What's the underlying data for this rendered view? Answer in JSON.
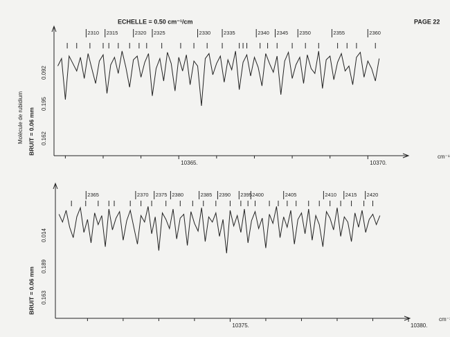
{
  "header": {
    "scale": "ECHELLE = 0.50 cm⁻¹/cm",
    "page": "PAGE 22"
  },
  "chart_data": [
    {
      "type": "line",
      "color": "#222222",
      "ylabel": "Molécule de rubidium",
      "noise_label": "BRUIT = 0.06 mm",
      "annotations": [
        "0.162",
        "0.195",
        "0.092"
      ],
      "xlabel": "cm⁻¹",
      "xlim": [
        10361.7,
        10370.8
      ],
      "ylim": [
        0,
        100
      ],
      "xticks": [
        {
          "value": 10365,
          "label": "10365."
        },
        {
          "value": 10370,
          "label": "10370."
        }
      ],
      "xminorticks": [
        10362,
        10363,
        10364,
        10366,
        10367,
        10368,
        10369
      ],
      "assignments": {
        "numbers": [
          2310,
          2315,
          2320,
          2325,
          2330,
          2335,
          2340,
          2345,
          2350,
          2355,
          2360
        ],
        "x": [
          10362.55,
          10363.05,
          10363.8,
          10364.3,
          10365.5,
          10366.15,
          10367.05,
          10367.55,
          10368.15,
          10369.05,
          10370.0
        ]
      },
      "assignment_ticks": [
        10362.05,
        10362.3,
        10362.65,
        10363.0,
        10363.15,
        10363.4,
        10363.7,
        10363.95,
        10364.15,
        10364.55,
        10365.05,
        10365.4,
        10365.75,
        10366.15,
        10366.6,
        10366.7,
        10366.8,
        10367.15,
        10367.35,
        10367.6,
        10368.0,
        10368.35,
        10368.7,
        10369.2,
        10369.45,
        10369.7,
        10370.2
      ],
      "x": [
        10361.8,
        10361.9,
        10362.0,
        10362.1,
        10362.2,
        10362.3,
        10362.4,
        10362.5,
        10362.6,
        10362.7,
        10362.8,
        10362.9,
        10363.0,
        10363.1,
        10363.2,
        10363.3,
        10363.4,
        10363.5,
        10363.6,
        10363.7,
        10363.8,
        10363.9,
        10364.0,
        10364.1,
        10364.2,
        10364.3,
        10364.4,
        10364.5,
        10364.6,
        10364.7,
        10364.8,
        10364.9,
        10365.0,
        10365.1,
        10365.2,
        10365.3,
        10365.4,
        10365.5,
        10365.6,
        10365.7,
        10365.8,
        10365.9,
        10366.0,
        10366.1,
        10366.2,
        10366.3,
        10366.4,
        10366.5,
        10366.6,
        10366.7,
        10366.8,
        10366.9,
        10367.0,
        10367.1,
        10367.2,
        10367.3,
        10367.4,
        10367.5,
        10367.6,
        10367.7,
        10367.8,
        10367.9,
        10368.0,
        10368.1,
        10368.2,
        10368.3,
        10368.4,
        10368.5,
        10368.6,
        10368.7,
        10368.8,
        10368.9,
        10369.0,
        10369.1,
        10369.2,
        10369.3,
        10369.4,
        10369.5,
        10369.6,
        10369.7,
        10369.8,
        10369.9,
        10370.0,
        10370.1,
        10370.2,
        10370.3
      ],
      "values": [
        72,
        78,
        45,
        80,
        74,
        68,
        79,
        62,
        82,
        70,
        58,
        76,
        81,
        50,
        73,
        79,
        66,
        84,
        71,
        55,
        77,
        80,
        63,
        75,
        82,
        48,
        70,
        78,
        60,
        83,
        74,
        52,
        79,
        68,
        81,
        57,
        76,
        72,
        40,
        78,
        82,
        65,
        74,
        80,
        59,
        77,
        69,
        84,
        53,
        75,
        81,
        64,
        79,
        71,
        56,
        82,
        74,
        67,
        80,
        49,
        76,
        83,
        62,
        73,
        79,
        58,
        81,
        70,
        66,
        84,
        54,
        77,
        80,
        61,
        75,
        82,
        68,
        72,
        57,
        79,
        83,
        63,
        76,
        70,
        60,
        78
      ]
    },
    {
      "type": "line",
      "color": "#222222",
      "noise_label": "BRUIT = 0.06 mm",
      "annotations": [
        "0.163",
        "0.189",
        "0.014"
      ],
      "xlabel": "cm⁻¹",
      "xlim": [
        10370.1,
        10380.0
      ],
      "ylim": [
        0,
        100
      ],
      "xticks": [
        {
          "value": 10375,
          "label": "10375."
        },
        {
          "value": 10380,
          "label": "10380."
        }
      ],
      "xminorticks": [
        10371,
        10372,
        10373,
        10374,
        10376,
        10377,
        10378,
        10379
      ],
      "assignments": {
        "numbers": [
          2365,
          2370,
          2375,
          2380,
          2385,
          2390,
          2395,
          2400,
          2405,
          2410,
          2415,
          2420
        ],
        "x": [
          10370.96,
          10372.35,
          10372.87,
          10373.33,
          10374.13,
          10374.65,
          10375.25,
          10375.58,
          10376.5,
          10377.62,
          10378.19,
          10378.79
        ]
      },
      "assignment_ticks": [
        10370.55,
        10370.95,
        10371.3,
        10371.6,
        10371.75,
        10372.2,
        10372.5,
        10372.8,
        10373.2,
        10373.6,
        10373.95,
        10374.25,
        10374.6,
        10375.0,
        10375.3,
        10375.5,
        10375.7,
        10376.1,
        10376.35,
        10376.6,
        10376.85,
        10377.2,
        10377.5,
        10377.8,
        10378.1,
        10378.4,
        10378.75,
        10379.0
      ],
      "x": [
        10370.2,
        10370.3,
        10370.4,
        10370.5,
        10370.6,
        10370.7,
        10370.8,
        10370.9,
        10371.0,
        10371.1,
        10371.2,
        10371.3,
        10371.4,
        10371.5,
        10371.6,
        10371.7,
        10371.8,
        10371.9,
        10372.0,
        10372.1,
        10372.2,
        10372.3,
        10372.4,
        10372.5,
        10372.6,
        10372.7,
        10372.8,
        10372.9,
        10373.0,
        10373.1,
        10373.2,
        10373.3,
        10373.4,
        10373.5,
        10373.6,
        10373.7,
        10373.8,
        10373.9,
        10374.0,
        10374.1,
        10374.2,
        10374.3,
        10374.4,
        10374.5,
        10374.6,
        10374.7,
        10374.8,
        10374.9,
        10375.0,
        10375.1,
        10375.2,
        10375.3,
        10375.4,
        10375.5,
        10375.6,
        10375.7,
        10375.8,
        10375.9,
        10376.0,
        10376.1,
        10376.2,
        10376.3,
        10376.4,
        10376.5,
        10376.6,
        10376.7,
        10376.8,
        10376.9,
        10377.0,
        10377.1,
        10377.2,
        10377.3,
        10377.4,
        10377.5,
        10377.6,
        10377.7,
        10377.8,
        10377.9,
        10378.0,
        10378.1,
        10378.2,
        10378.3,
        10378.4,
        10378.5,
        10378.6,
        10378.7,
        10378.8,
        10378.9,
        10379.0,
        10379.1,
        10379.2
      ],
      "values": [
        80,
        74,
        83,
        70,
        62,
        78,
        85,
        66,
        76,
        58,
        81,
        72,
        79,
        55,
        84,
        68,
        77,
        82,
        60,
        75,
        83,
        70,
        57,
        79,
        74,
        86,
        65,
        78,
        52,
        81,
        76,
        69,
        84,
        61,
        77,
        80,
        56,
        82,
        73,
        67,
        85,
        59,
        78,
        74,
        81,
        63,
        76,
        50,
        83,
        71,
        79,
        66,
        84,
        58,
        75,
        82,
        69,
        77,
        54,
        80,
        73,
        86,
        62,
        78,
        70,
        83,
        57,
        76,
        81,
        65,
        84,
        60,
        79,
        72,
        55,
        82,
        77,
        68,
        85,
        63,
        78,
        74,
        59,
        81,
        70,
        83,
        66,
        76,
        80,
        72,
        79
      ]
    }
  ]
}
